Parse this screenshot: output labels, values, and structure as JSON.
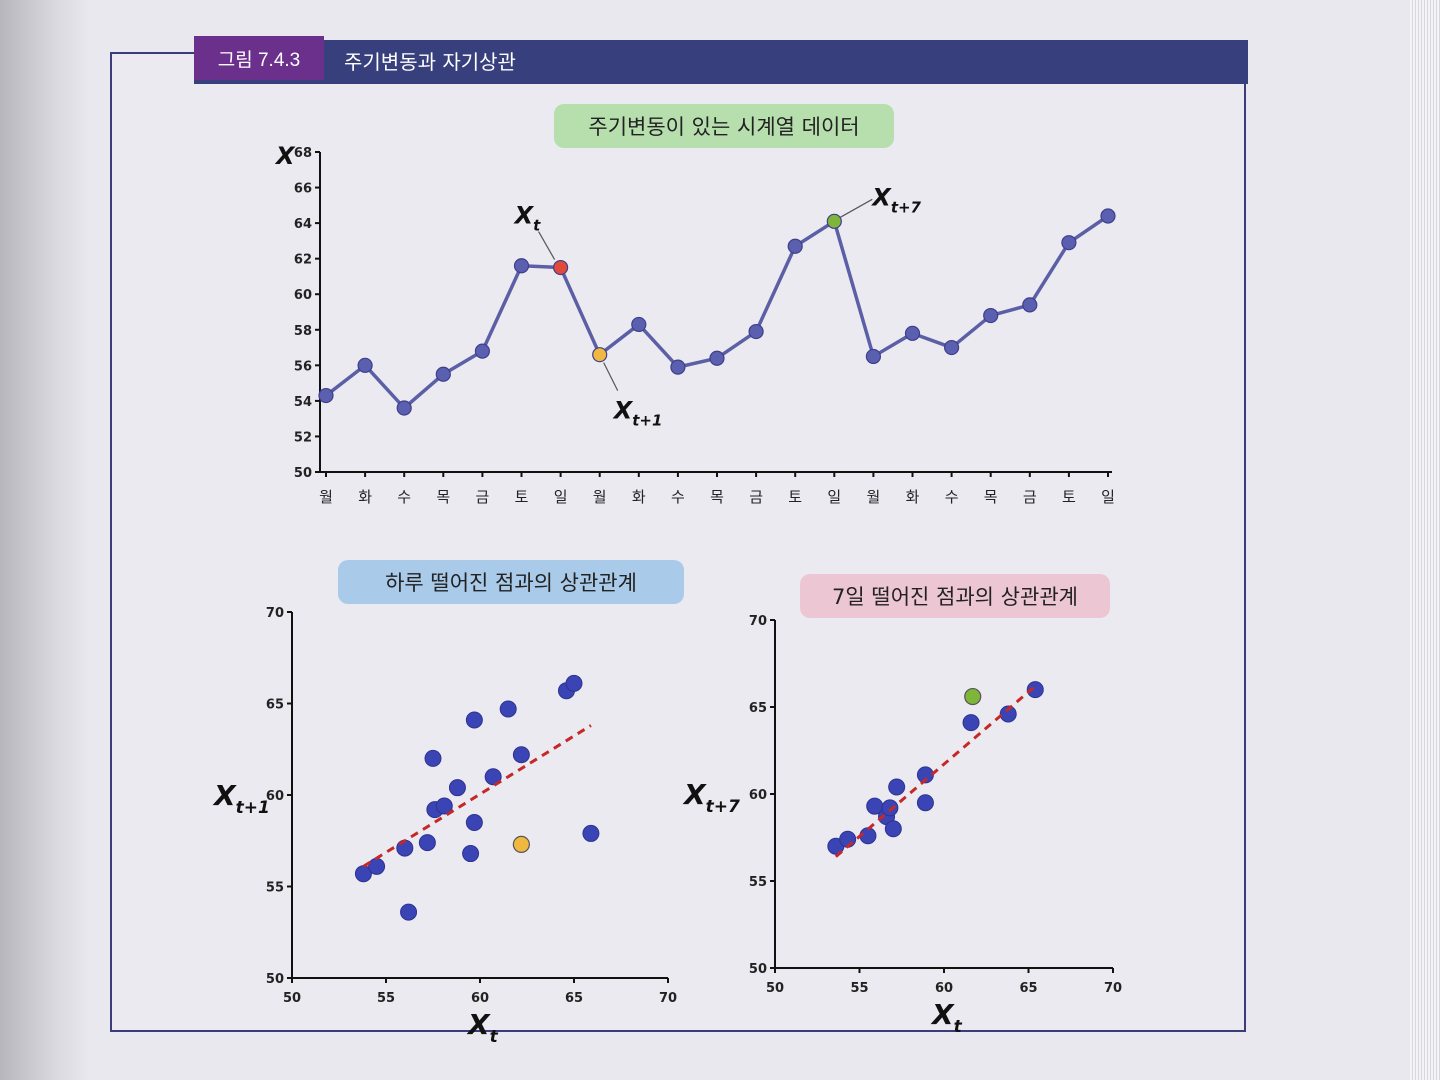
{
  "figure": {
    "number": "그림 7.4.3",
    "title": "주기변동과 자기상관"
  },
  "colors": {
    "header_band": "#37407c",
    "number_badge": "#6b2f8c",
    "line": "#5b5fa6",
    "point": "#5a5fb0",
    "scatter_point": "#3b44b5",
    "highlight_xt": "#e04a3a",
    "highlight_xt1": "#f0b840",
    "highlight_xt7": "#7fb53a",
    "trend": "#c62828"
  },
  "chart_data": [
    {
      "type": "line",
      "title": "주기변동이 있는 시계열 데이터",
      "ylabel": "X",
      "ylim": [
        50,
        68
      ],
      "yticks": [
        50,
        52,
        54,
        56,
        58,
        60,
        62,
        64,
        66,
        68
      ],
      "categories": [
        "월",
        "화",
        "수",
        "목",
        "금",
        "토",
        "일",
        "월",
        "화",
        "수",
        "목",
        "금",
        "토",
        "일",
        "월",
        "화",
        "수",
        "목",
        "금",
        "토",
        "일"
      ],
      "values": [
        54.3,
        56.0,
        53.6,
        55.5,
        56.8,
        61.6,
        61.5,
        56.6,
        58.3,
        55.9,
        56.4,
        57.9,
        62.7,
        64.1,
        56.5,
        57.8,
        57.0,
        58.8,
        59.4,
        62.9,
        64.4
      ],
      "annotations": [
        {
          "label": "X",
          "sub": "t",
          "index": 6
        },
        {
          "label": "X",
          "sub": "t+1",
          "index": 7
        },
        {
          "label": "X",
          "sub": "t+7",
          "index": 13
        }
      ]
    },
    {
      "type": "scatter",
      "title": "하루 떨어진 점과의 상관관계",
      "xlabel": "X",
      "xlabel_sub": "t",
      "ylabel": "X",
      "ylabel_sub": "t+1",
      "xlim": [
        50,
        70
      ],
      "ylim": [
        50,
        70
      ],
      "xticks": [
        50,
        55,
        60,
        65,
        70
      ],
      "yticks": [
        50,
        55,
        60,
        65,
        70
      ],
      "points": [
        [
          53.8,
          55.7
        ],
        [
          54.5,
          56.1
        ],
        [
          56.0,
          57.1
        ],
        [
          56.2,
          53.6
        ],
        [
          57.2,
          57.4
        ],
        [
          57.5,
          62.0
        ],
        [
          57.6,
          59.2
        ],
        [
          58.1,
          59.4
        ],
        [
          58.8,
          60.4
        ],
        [
          59.5,
          56.8
        ],
        [
          59.7,
          58.5
        ],
        [
          59.7,
          64.1
        ],
        [
          60.7,
          61.0
        ],
        [
          61.5,
          64.7
        ],
        [
          62.2,
          62.2
        ],
        [
          64.6,
          65.7
        ],
        [
          65.0,
          66.1
        ],
        [
          65.9,
          57.9
        ]
      ],
      "highlight": {
        "x": 62.2,
        "y": 57.3
      },
      "trend": {
        "x": [
          53.8,
          65.9
        ],
        "y": [
          56.1,
          63.8
        ]
      }
    },
    {
      "type": "scatter",
      "title": "7일 떨어진 점과의 상관관계",
      "xlabel": "X",
      "xlabel_sub": "t",
      "ylabel": "X",
      "ylabel_sub": "t+7",
      "xlim": [
        50,
        70
      ],
      "ylim": [
        50,
        70
      ],
      "xticks": [
        50,
        55,
        60,
        65,
        70
      ],
      "yticks": [
        50,
        55,
        60,
        65,
        70
      ],
      "points": [
        [
          53.6,
          57.0
        ],
        [
          54.3,
          57.4
        ],
        [
          55.5,
          57.6
        ],
        [
          55.9,
          59.3
        ],
        [
          56.6,
          58.7
        ],
        [
          56.8,
          59.2
        ],
        [
          57.0,
          58.0
        ],
        [
          57.2,
          60.4
        ],
        [
          58.9,
          61.1
        ],
        [
          58.9,
          59.5
        ],
        [
          61.6,
          64.1
        ],
        [
          63.8,
          64.6
        ],
        [
          65.4,
          66.0
        ]
      ],
      "highlight": {
        "x": 61.7,
        "y": 65.6
      },
      "trend": {
        "x": [
          53.6,
          65.4
        ],
        "y": [
          56.4,
          66.2
        ]
      }
    }
  ]
}
